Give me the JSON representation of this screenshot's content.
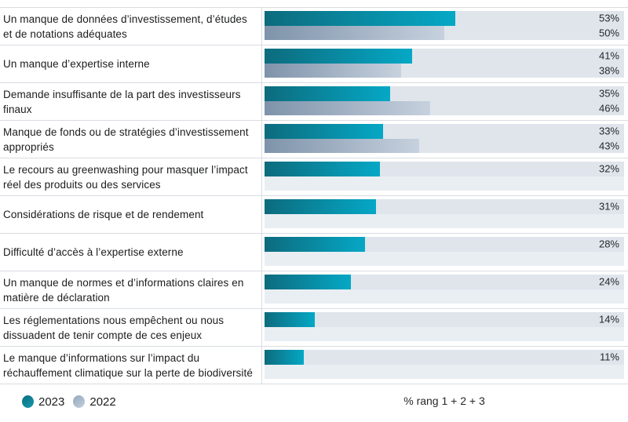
{
  "chart_data": {
    "type": "bar",
    "orientation": "horizontal",
    "title": "",
    "xlabel": "% rang 1 + 2 + 3",
    "ylabel": "",
    "xlim": [
      0,
      100
    ],
    "grid": false,
    "legend_position": "bottom-left",
    "categories": [
      "Un manque de données d’investissement, d’études et de notations adéquates",
      "Un manque d’expertise interne",
      "Demande insuffisante de la part des investisseurs finaux",
      "Manque de fonds ou de stratégies d’investissement appropriés",
      "Le recours au greenwashing pour masquer l’impact réel des produits ou des services",
      "Considérations de risque et de rendement",
      "Difficulté d’accès à l’expertise externe",
      "Un manque de normes et d’informations claires en matière de déclaration",
      "Les réglementations nous empêchent ou nous dissuadent de tenir compte de ces enjeux",
      "Le manque d’informations sur l’impact du réchauffement climatique sur la perte de biodiversité"
    ],
    "series": [
      {
        "name": "2023",
        "values": [
          53,
          41,
          35,
          33,
          32,
          31,
          28,
          24,
          14,
          11
        ]
      },
      {
        "name": "2022",
        "values": [
          50,
          38,
          46,
          43,
          null,
          null,
          null,
          null,
          null,
          null
        ]
      }
    ]
  },
  "colors": {
    "bar_2023_start": "#0d6b7d",
    "bar_2023_end": "#05a8c6",
    "bar_2022_start": "#7e93aa",
    "bar_2022_end": "#c7d1de",
    "track": "#dfe5eb",
    "track_empty": "#e9eef3",
    "divider": "#d8dce1"
  },
  "rows": [
    {
      "label": "Un manque de données d’investissement, d’études et de notations adéquates",
      "y2023": 53,
      "y2022": 50,
      "label2023": "53%",
      "label2022": "50%"
    },
    {
      "label": "Un manque d’expertise interne",
      "y2023": 41,
      "y2022": 38,
      "label2023": "41%",
      "label2022": "38%"
    },
    {
      "label": "Demande insuffisante de la part des investisseurs finaux",
      "y2023": 35,
      "y2022": 46,
      "label2023": "35%",
      "label2022": "46%"
    },
    {
      "label": "Manque de fonds ou de stratégies d’investissement appropriés",
      "y2023": 33,
      "y2022": 43,
      "label2023": "33%",
      "label2022": "43%"
    },
    {
      "label": "Le recours au greenwashing pour masquer l’impact réel des produits ou des services",
      "y2023": 32,
      "y2022": null,
      "label2023": "32%",
      "label2022": null
    },
    {
      "label": "Considérations de risque et de rendement",
      "y2023": 31,
      "y2022": null,
      "label2023": "31%",
      "label2022": null
    },
    {
      "label": "Difficulté d’accès à l’expertise externe",
      "y2023": 28,
      "y2022": null,
      "label2023": "28%",
      "label2022": null
    },
    {
      "label": "Un manque de normes et d’informations claires en matière de déclaration",
      "y2023": 24,
      "y2022": null,
      "label2023": "24%",
      "label2022": null
    },
    {
      "label": "Les réglementations nous empêchent ou nous dissuadent de tenir compte de ces enjeux",
      "y2023": 14,
      "y2022": null,
      "label2023": "14%",
      "label2022": null
    },
    {
      "label": "Le manque d’informations sur l’impact du réchauffement climatique sur la perte de biodiversité",
      "y2023": 11,
      "y2022": null,
      "label2023": "11%",
      "label2022": null
    }
  ],
  "legend": {
    "items": [
      {
        "label": "2023"
      },
      {
        "label": "2022"
      }
    ]
  },
  "footer": {
    "note": "% rang 1 + 2 + 3"
  }
}
